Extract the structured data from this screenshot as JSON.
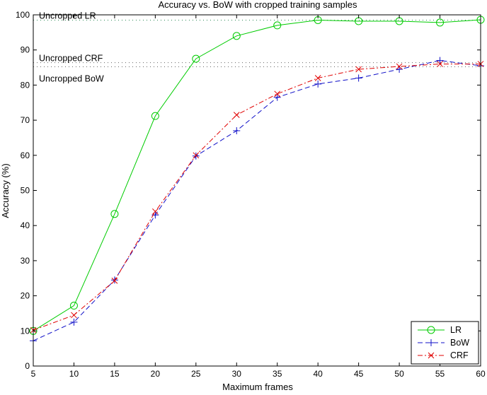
{
  "chart_data": {
    "type": "line",
    "title": "Accuracy vs. BoW with cropped training samples",
    "xlabel": "Maximum frames",
    "ylabel": "Accuracy (%)",
    "xlim": [
      5,
      60
    ],
    "ylim": [
      0,
      100
    ],
    "xticks": [
      5,
      10,
      15,
      20,
      25,
      30,
      35,
      40,
      45,
      50,
      55,
      60
    ],
    "yticks": [
      0,
      10,
      20,
      30,
      40,
      50,
      60,
      70,
      80,
      90,
      100
    ],
    "grid": false,
    "legend_position": "bottom-right",
    "x": [
      5,
      10,
      15,
      20,
      25,
      30,
      35,
      40,
      45,
      50,
      55,
      60
    ],
    "series": [
      {
        "name": "LR",
        "color": "#00cc00",
        "line": "solid",
        "marker": "circle",
        "values": [
          10.0,
          17.2,
          43.3,
          71.2,
          87.5,
          94.0,
          97.0,
          98.5,
          98.2,
          98.2,
          97.8,
          98.6
        ]
      },
      {
        "name": "BoW",
        "color": "#1010c8",
        "line": "dashed",
        "marker": "plus",
        "values": [
          7.2,
          12.5,
          24.5,
          43.0,
          59.8,
          67.0,
          76.5,
          80.3,
          82.0,
          84.5,
          87.0,
          85.5
        ]
      },
      {
        "name": "CRF",
        "color": "#e00000",
        "line": "dashdot",
        "marker": "x",
        "values": [
          10.2,
          14.5,
          24.3,
          44.0,
          60.0,
          71.5,
          77.5,
          82.0,
          84.5,
          85.3,
          86.0,
          86.0
        ]
      }
    ],
    "reference_lines": [
      {
        "label": "Uncropped LR",
        "value": 98.5,
        "color": "#2e8b57"
      },
      {
        "label": "Uncropped CRF",
        "value": 86.4,
        "color": "#666666"
      },
      {
        "label": "Uncropped BoW",
        "value": 85.2,
        "color": "#666666"
      }
    ]
  }
}
